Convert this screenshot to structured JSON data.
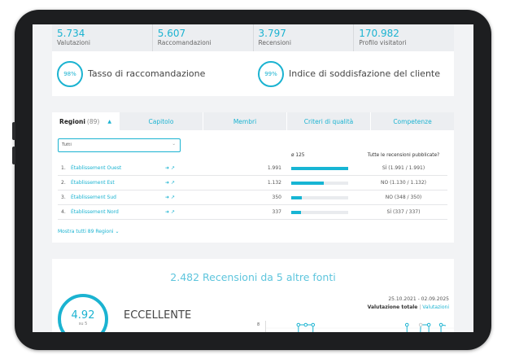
{
  "stats": [
    {
      "value": "5.734",
      "label": "Valutazioni"
    },
    {
      "value": "5.607",
      "label": "Raccomandazioni"
    },
    {
      "value": "3.797",
      "label": "Recensioni"
    },
    {
      "value": "170.982",
      "label": "Profilo visitatori"
    }
  ],
  "rates": [
    {
      "percent": "98%",
      "label": "Tasso di raccomandazione"
    },
    {
      "percent": "99%",
      "label": "Indice di soddisfazione del cliente"
    }
  ],
  "tabs": {
    "active": {
      "label": "Regioni",
      "count": "(89)"
    },
    "others": [
      "Capitolo",
      "Membri",
      "Criteri di qualità",
      "Competenze"
    ]
  },
  "filter": {
    "value": "Tutti"
  },
  "columns": {
    "avg": "ø 125",
    "published": "Tutte le recensioni pubblicate?"
  },
  "rows": [
    {
      "n": "1.",
      "name": "Établissement Ouest",
      "count": "1.991",
      "fill": 1.0,
      "published": "SÌ (1.991 / 1.991)"
    },
    {
      "n": "2.",
      "name": "Établissement Est",
      "count": "1.132",
      "fill": 0.57,
      "published": "NO (1.130 / 1.132)"
    },
    {
      "n": "3.",
      "name": "Établissement Sud",
      "count": "350",
      "fill": 0.18,
      "published": "NO (348 / 350)"
    },
    {
      "n": "4.",
      "name": "Établissement Nord",
      "count": "337",
      "fill": 0.17,
      "published": "SÌ (337 / 337)"
    }
  ],
  "show_all": "Mostra tutti 89 Regioni ⌄",
  "reviews": {
    "title": "2.482 Recensioni da 5 altre fonti",
    "score": "4.92",
    "scale": "su 5",
    "rating": "ECCELLENTE",
    "dates": "25.10.2021 - 02.09.2025",
    "total_label": "Valutazione totale",
    "separator": " | ",
    "ratings_link": "Valutazioni",
    "axis_tick": "8"
  },
  "accent": "#1bb3d1"
}
